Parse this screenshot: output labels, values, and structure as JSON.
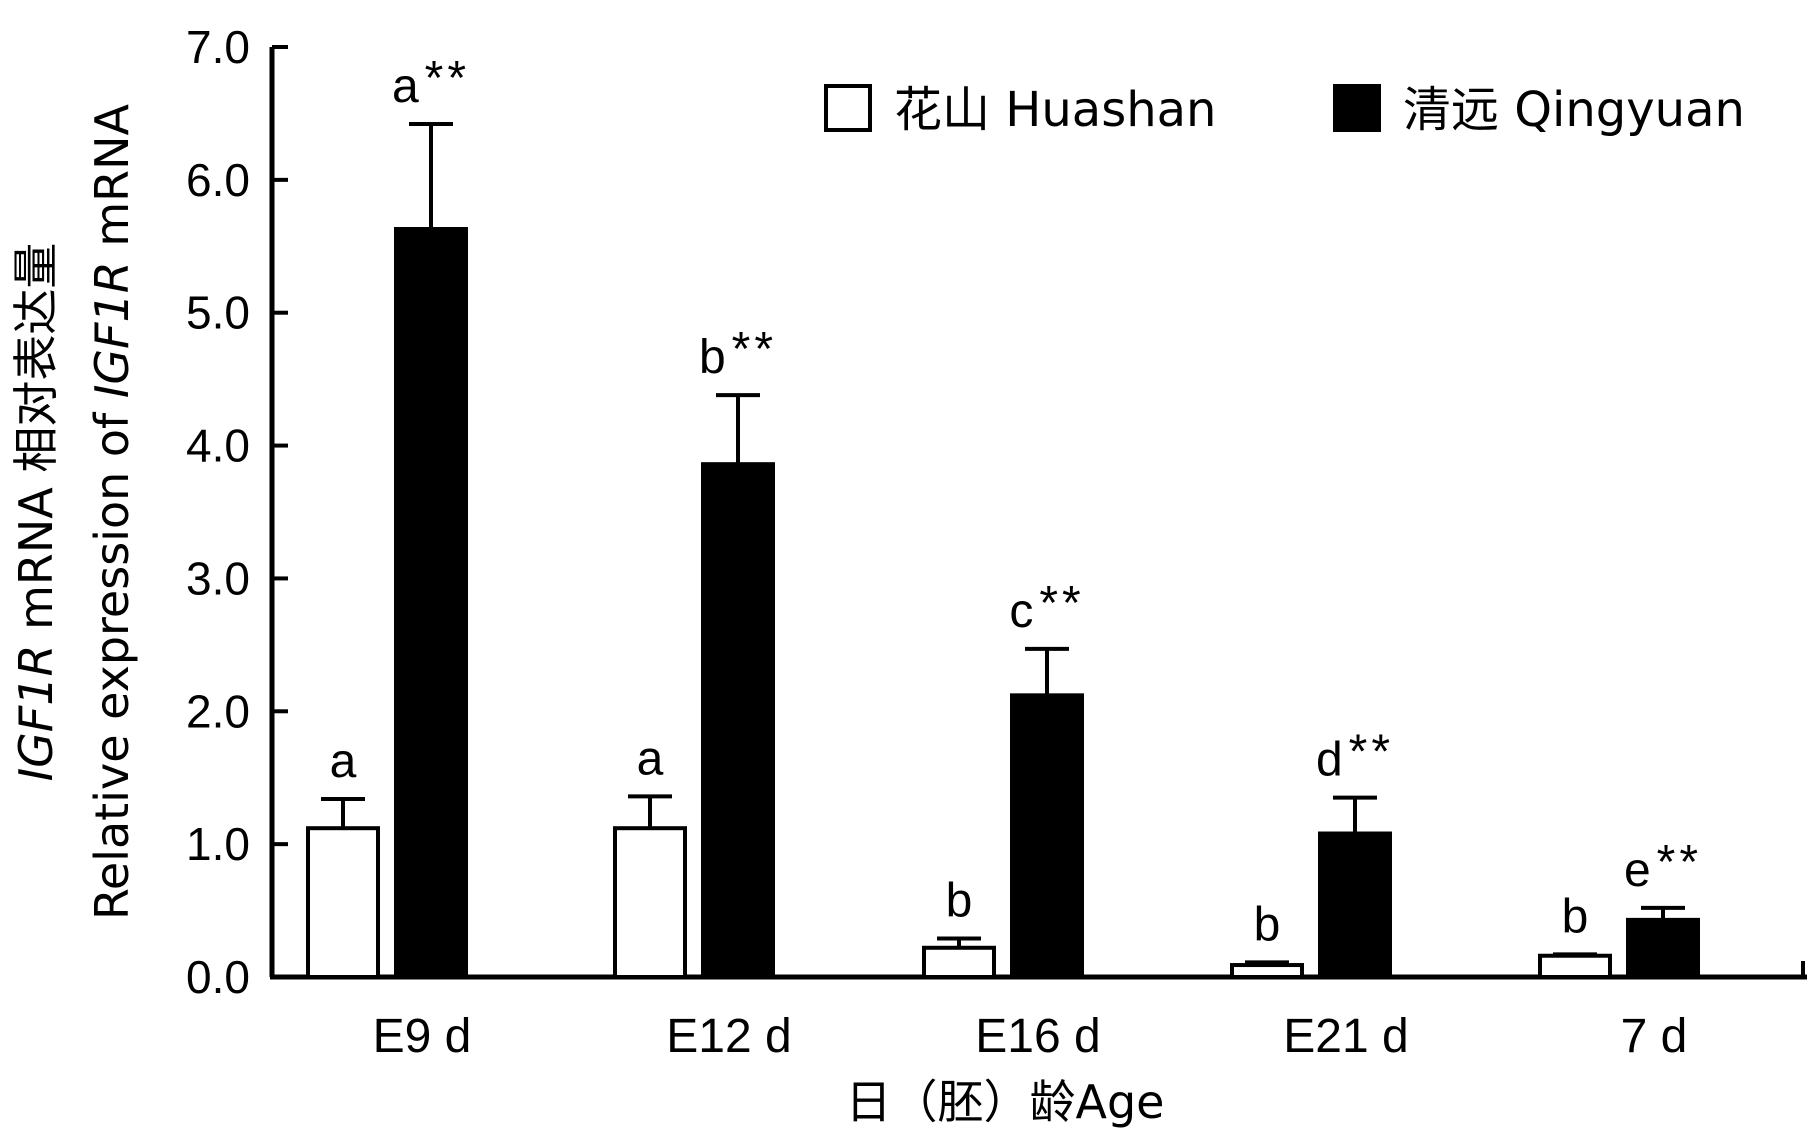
{
  "chart_data": {
    "type": "bar",
    "title": "",
    "xlabel": "日（胚）龄Age",
    "ylabel_line1": [
      {
        "text": "IGF1R",
        "italic": true
      },
      {
        "text": " mRNA 相对表达量",
        "italic": false
      }
    ],
    "ylabel_line2": [
      {
        "text": "Relative expression of ",
        "italic": false
      },
      {
        "text": "IGF1R",
        "italic": true
      },
      {
        "text": " mRNA",
        "italic": false
      }
    ],
    "ylim": [
      0,
      7
    ],
    "yticks": [
      "0.0",
      "1.0",
      "2.0",
      "3.0",
      "4.0",
      "5.0",
      "6.0",
      "7.0"
    ],
    "categories": [
      "E9 d",
      "E12 d",
      "E16 d",
      "E21 d",
      "7 d"
    ],
    "legend_position": "top-right",
    "series": [
      {
        "name": "花山 Huashan",
        "fill": "#ffffff",
        "values": [
          1.12,
          1.12,
          0.22,
          0.09,
          0.16
        ],
        "errors": [
          0.22,
          0.24,
          0.07,
          0.02,
          0.01
        ],
        "labels": [
          "a",
          "a",
          "b",
          "b",
          "b"
        ]
      },
      {
        "name": "清远 Qingyuan",
        "fill": "#000000",
        "values": [
          5.63,
          3.86,
          2.12,
          1.08,
          0.43
        ],
        "errors": [
          0.79,
          0.52,
          0.35,
          0.27,
          0.09
        ],
        "labels": [
          "a**",
          "b**",
          "c**",
          "d**",
          "e**"
        ]
      }
    ]
  }
}
